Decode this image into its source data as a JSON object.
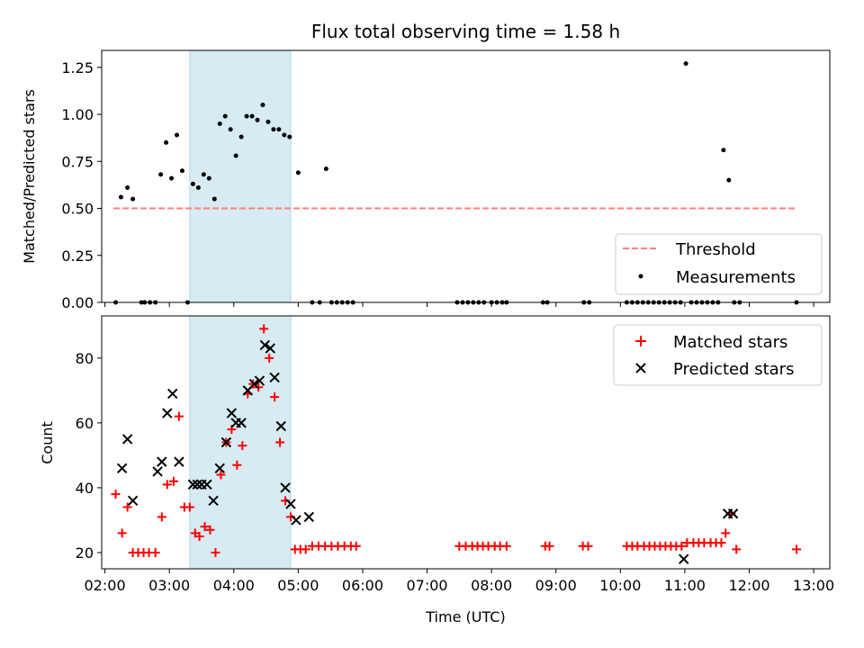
{
  "chart_data": [
    {
      "type": "scatter",
      "title": "Flux total observing time = 1.58 h",
      "ylabel": "Matched/Predicted stars",
      "xlabel": "",
      "x_unit": "time (UTC)",
      "xlim": [
        "01:57",
        "13:15"
      ],
      "ylim": [
        0,
        1.34
      ],
      "x_ticks": [
        "02:00",
        "03:00",
        "04:00",
        "05:00",
        "06:00",
        "07:00",
        "08:00",
        "09:00",
        "10:00",
        "11:00",
        "12:00",
        "13:00"
      ],
      "y_ticks": [
        0.0,
        0.25,
        0.5,
        0.75,
        1.0,
        1.25
      ],
      "y_tick_labels": [
        "0.00",
        "0.25",
        "0.50",
        "0.75",
        "1.00",
        "1.25"
      ],
      "highlight_span": {
        "start": "03:19",
        "end": "04:53",
        "color": "#add8e6"
      },
      "legend": {
        "position": "lower right"
      },
      "series": [
        {
          "name": "Threshold",
          "kind": "dashed-line",
          "color": "#ff7f7f",
          "x": [
            "02:08",
            "12:44"
          ],
          "y": [
            0.5,
            0.5
          ]
        },
        {
          "name": "Measurements",
          "kind": "dots",
          "color": "#000000",
          "x": [
            "02:10",
            "02:15",
            "02:21",
            "02:26",
            "02:34",
            "02:37",
            "02:42",
            "02:47",
            "02:52",
            "02:57",
            "03:02",
            "03:07",
            "03:12",
            "03:17",
            "03:22",
            "03:27",
            "03:32",
            "03:37",
            "03:42",
            "03:47",
            "03:52",
            "03:57",
            "04:02",
            "04:07",
            "04:12",
            "04:17",
            "04:22",
            "04:27",
            "04:32",
            "04:37",
            "04:42",
            "04:47",
            "04:52",
            "05:00",
            "05:13",
            "05:20",
            "05:26",
            "05:31",
            "05:36",
            "05:41",
            "05:46",
            "05:51",
            "07:28",
            "07:33",
            "07:38",
            "07:43",
            "07:48",
            "07:53",
            "08:00",
            "08:05",
            "08:10",
            "08:14",
            "08:48",
            "08:52",
            "09:26",
            "09:31",
            "10:06",
            "10:11",
            "10:16",
            "10:21",
            "10:26",
            "10:31",
            "10:36",
            "10:41",
            "10:46",
            "10:51",
            "10:56",
            "11:01",
            "11:06",
            "11:11",
            "11:16",
            "11:21",
            "11:26",
            "11:31",
            "11:36",
            "11:41",
            "11:46",
            "11:51",
            "12:44"
          ],
          "y": [
            0.0,
            0.56,
            0.61,
            0.55,
            0.0,
            0.0,
            0.0,
            0.0,
            0.68,
            0.85,
            0.66,
            0.89,
            0.7,
            0.0,
            0.63,
            0.61,
            0.68,
            0.66,
            0.55,
            0.95,
            0.99,
            0.92,
            0.78,
            0.88,
            0.99,
            0.99,
            0.97,
            1.05,
            0.96,
            0.92,
            0.92,
            0.89,
            0.88,
            0.69,
            0.0,
            0.0,
            0.71,
            0.0,
            0.0,
            0.0,
            0.0,
            0.0,
            0.0,
            0.0,
            0.0,
            0.0,
            0.0,
            0.0,
            0.0,
            0.0,
            0.0,
            0.0,
            0.0,
            0.0,
            0.0,
            0.0,
            0.0,
            0.0,
            0.0,
            0.0,
            0.0,
            0.0,
            0.0,
            0.0,
            0.0,
            0.0,
            0.0,
            1.27,
            0.0,
            0.0,
            0.0,
            0.0,
            0.0,
            0.0,
            0.81,
            0.65,
            0.0,
            0.0,
            0.0
          ]
        }
      ]
    },
    {
      "type": "scatter",
      "title": "",
      "ylabel": "Count",
      "xlabel": "Time (UTC)",
      "xlim": [
        "01:57",
        "13:15"
      ],
      "ylim": [
        15,
        93
      ],
      "x_ticks": [
        "02:00",
        "03:00",
        "04:00",
        "05:00",
        "06:00",
        "07:00",
        "08:00",
        "09:00",
        "10:00",
        "11:00",
        "12:00",
        "13:00"
      ],
      "y_ticks": [
        20,
        40,
        60,
        80
      ],
      "highlight_span": {
        "start": "03:19",
        "end": "04:53",
        "color": "#add8e6"
      },
      "legend": {
        "position": "upper right"
      },
      "series": [
        {
          "name": "Matched stars",
          "kind": "plus",
          "color": "#ff0000",
          "x": [
            "02:10",
            "02:16",
            "02:21",
            "02:26",
            "02:31",
            "02:36",
            "02:41",
            "02:47",
            "02:53",
            "02:58",
            "03:04",
            "03:09",
            "03:14",
            "03:19",
            "03:24",
            "03:28",
            "03:33",
            "03:38",
            "03:43",
            "03:48",
            "03:53",
            "03:58",
            "04:03",
            "04:08",
            "04:13",
            "04:18",
            "04:23",
            "04:28",
            "04:33",
            "04:38",
            "04:43",
            "04:48",
            "04:53",
            "04:57",
            "05:02",
            "05:07",
            "05:13",
            "05:19",
            "05:25",
            "05:31",
            "05:37",
            "05:43",
            "05:49",
            "05:54",
            "07:30",
            "07:36",
            "07:42",
            "07:47",
            "07:52",
            "07:57",
            "08:03",
            "08:08",
            "08:14",
            "08:50",
            "08:54",
            "09:25",
            "09:30",
            "10:06",
            "10:11",
            "10:16",
            "10:22",
            "10:27",
            "10:32",
            "10:37",
            "10:42",
            "10:47",
            "10:52",
            "10:57",
            "11:02",
            "11:08",
            "11:13",
            "11:18",
            "11:24",
            "11:29",
            "11:34",
            "11:38",
            "11:43",
            "11:48",
            "12:44"
          ],
          "y": [
            38,
            26,
            34,
            20,
            20,
            20,
            20,
            20,
            31,
            41,
            42,
            62,
            34,
            34,
            26,
            25,
            28,
            27,
            20,
            44,
            54,
            58,
            47,
            53,
            69,
            72,
            71,
            89,
            80,
            68,
            54,
            36,
            31,
            21,
            21,
            21,
            22,
            22,
            22,
            22,
            22,
            22,
            22,
            22,
            22,
            22,
            22,
            22,
            22,
            22,
            22,
            22,
            22,
            22,
            22,
            22,
            22,
            22,
            22,
            22,
            22,
            22,
            22,
            22,
            22,
            22,
            22,
            22,
            23,
            23,
            23,
            23,
            23,
            23,
            23,
            26,
            32,
            21,
            21
          ]
        },
        {
          "name": "Predicted stars",
          "kind": "x",
          "color": "#000000",
          "x": [
            "02:16",
            "02:21",
            "02:26",
            "02:49",
            "02:53",
            "02:58",
            "03:03",
            "03:09",
            "03:22",
            "03:26",
            "03:30",
            "03:35",
            "03:41",
            "03:47",
            "03:53",
            "03:58",
            "04:02",
            "04:07",
            "04:13",
            "04:19",
            "04:24",
            "04:29",
            "04:34",
            "04:38",
            "04:44",
            "04:48",
            "04:53",
            "04:58",
            "05:10",
            "10:59",
            "11:40",
            "11:45"
          ],
          "y": [
            46,
            55,
            36,
            45,
            48,
            63,
            69,
            48,
            41,
            41,
            41,
            41,
            36,
            46,
            54,
            63,
            60,
            60,
            70,
            72,
            73,
            84,
            83,
            74,
            59,
            40,
            35,
            30,
            31,
            18,
            32,
            32
          ]
        }
      ]
    }
  ]
}
